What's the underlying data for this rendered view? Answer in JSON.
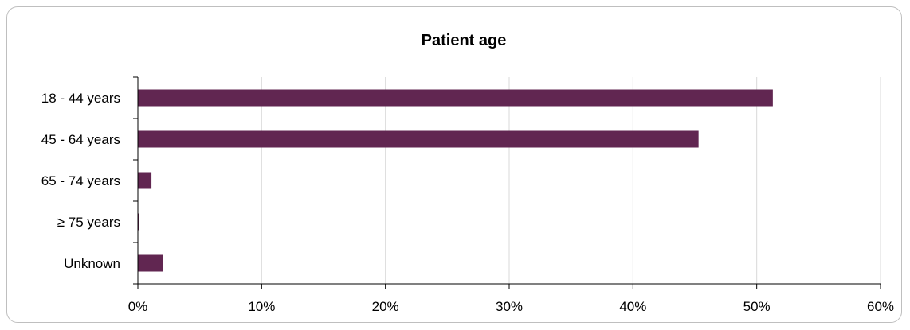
{
  "chart_data": {
    "type": "bar",
    "orientation": "horizontal",
    "title": "Patient age",
    "xlabel": "",
    "ylabel": "",
    "categories": [
      "18 - 44 years",
      "45 - 64 years",
      "65 - 74 years",
      "≥ 75 years",
      "Unknown"
    ],
    "values": [
      51.3,
      45.3,
      1.1,
      0.1,
      2.0
    ],
    "value_unit": "%",
    "xlim": [
      0,
      60
    ],
    "xticks": [
      "0%",
      "10%",
      "20%",
      "30%",
      "40%",
      "50%",
      "60%"
    ],
    "grid": true,
    "legend": "none",
    "bar_color": "#612651"
  }
}
